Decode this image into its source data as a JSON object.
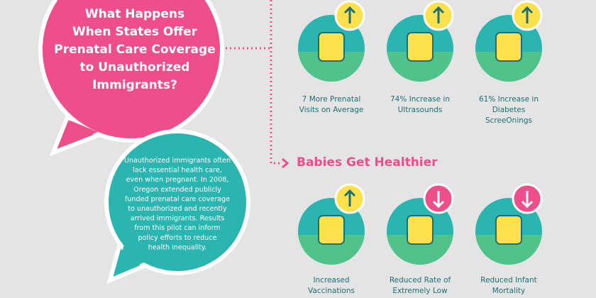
{
  "title": {
    "lines": [
      "What Happens",
      "When States Offer",
      "Prenatal Care Coverage",
      "to Unauthorized",
      "Immigrants?"
    ]
  },
  "description": {
    "lines": [
      "Unauthorized immigrants often",
      "lack essential health care,",
      "even when pregnant. In 2008,",
      "Oregon extended publicly",
      "funded prenatal care coverage",
      "to unauthorized and recently",
      "arrived immigrants. Results",
      "from this pilot can inform",
      "policy efforts to reduce",
      "health inequality."
    ]
  },
  "section_heading": "Babies Get Healthier",
  "top_stats": [
    {
      "lines": [
        "7 More Prenatal",
        "Visits on Average"
      ]
    },
    {
      "lines": [
        "74% Increase in",
        "Ultrasounds"
      ]
    },
    {
      "lines": [
        "61% Increase in",
        "Diabetes",
        "ScreeOnings"
      ]
    }
  ],
  "bottom_stats": [
    {
      "lines": [
        "Increased",
        "Vaccinations"
      ]
    },
    {
      "lines": [
        "Reduced Rate of",
        "Extremely Low"
      ]
    },
    {
      "lines": [
        "Reduced Infant",
        "Mortality"
      ]
    }
  ]
}
